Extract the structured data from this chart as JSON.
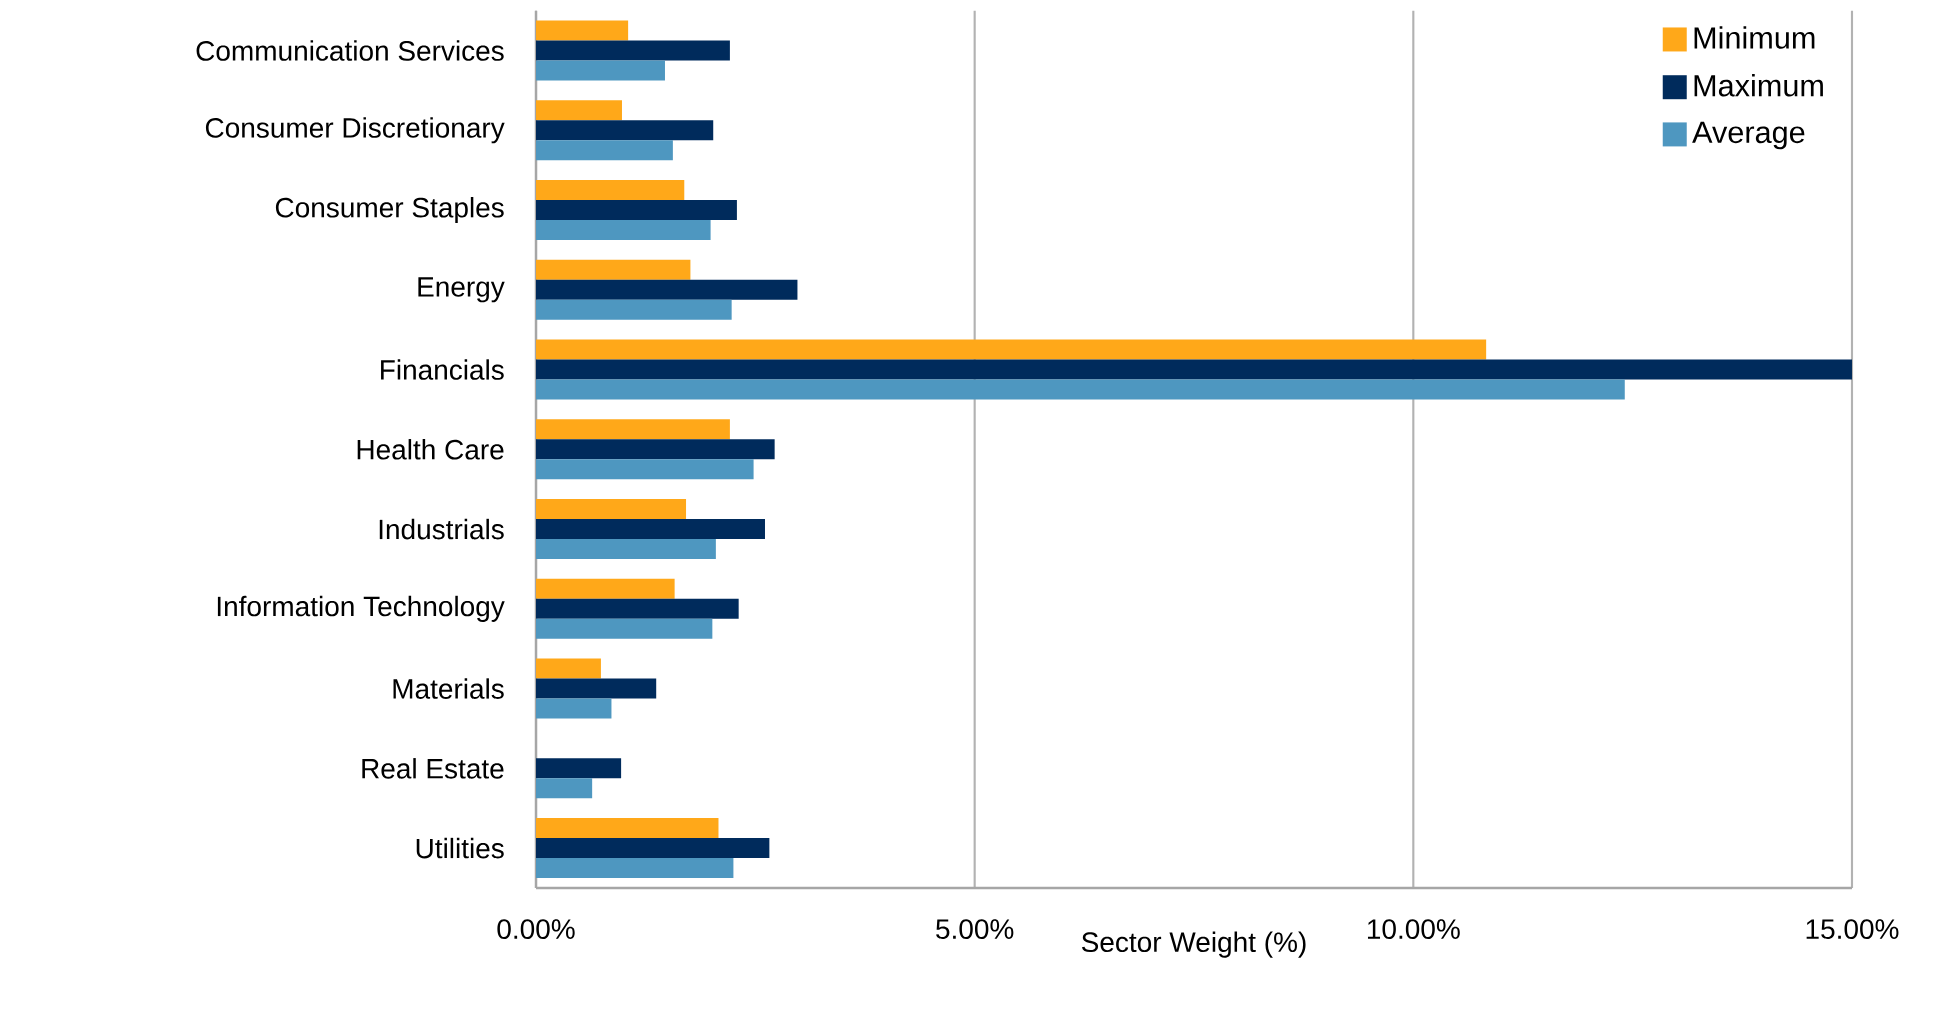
{
  "chart_data": {
    "type": "bar",
    "orientation": "horizontal",
    "xlabel": "Sector Weight (%)",
    "categories": [
      "Communication Services",
      "Consumer Discretionary",
      "Consumer Staples",
      "Energy",
      "Financials",
      "Health Care",
      "Industrials",
      "Information Technology",
      "Materials",
      "Real Estate",
      "Utilities"
    ],
    "series": [
      {
        "name": "Minimum",
        "color": "#ffa819",
        "values": [
          1.05,
          0.98,
          1.69,
          1.76,
          10.83,
          2.21,
          1.71,
          1.58,
          0.74,
          0,
          2.08
        ]
      },
      {
        "name": "Maximum",
        "color": "#002b5c",
        "values": [
          2.21,
          2.02,
          2.29,
          2.98,
          15.0,
          2.72,
          2.61,
          2.31,
          1.37,
          0.97,
          2.66
        ]
      },
      {
        "name": "Average",
        "color": "#4e97c0",
        "values": [
          1.47,
          1.56,
          1.99,
          2.23,
          12.41,
          2.48,
          2.05,
          2.01,
          0.86,
          0.64,
          2.25
        ]
      }
    ],
    "xlim": [
      0,
      15
    ],
    "xticks": [
      {
        "value": 0,
        "label": "0.00%"
      },
      {
        "value": 5,
        "label": "5.00%"
      },
      {
        "value": 10,
        "label": "10.00%"
      },
      {
        "value": 15,
        "label": "15.00%"
      }
    ],
    "grid": "x",
    "legend": "top right"
  }
}
